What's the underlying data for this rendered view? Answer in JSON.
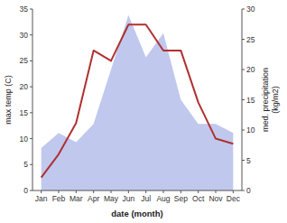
{
  "chart_data": {
    "type": "line",
    "xlabel": "date (month)",
    "ylabel": "max temp (C)",
    "y2label": "med. precipitation\n(kg/m2)",
    "categories": [
      "Jan",
      "Feb",
      "Mar",
      "Apr",
      "May",
      "Jun",
      "Jul",
      "Aug",
      "Sep",
      "Oct",
      "Nov",
      "Dec"
    ],
    "series": [
      {
        "type": "area",
        "axis": "y2",
        "color": "#c0c8ee",
        "values": [
          7.0,
          9.5,
          8.0,
          11.0,
          20.0,
          29.0,
          22.0,
          26.0,
          15.0,
          11.0,
          11.0,
          9.5
        ]
      },
      {
        "type": "line",
        "color": "#b03030",
        "values": [
          2.5,
          7.0,
          13.0,
          27.0,
          25.0,
          32.0,
          32.0,
          27.0,
          27.0,
          17.0,
          10.0,
          9.0
        ]
      }
    ],
    "ylim": [
      0,
      35
    ],
    "yticks": [
      0,
      5,
      10,
      15,
      20,
      25,
      30,
      35
    ],
    "y2lim": [
      0,
      30
    ],
    "y2ticks": [
      0,
      5,
      10,
      15,
      20,
      25,
      30
    ],
    "grid": false
  }
}
